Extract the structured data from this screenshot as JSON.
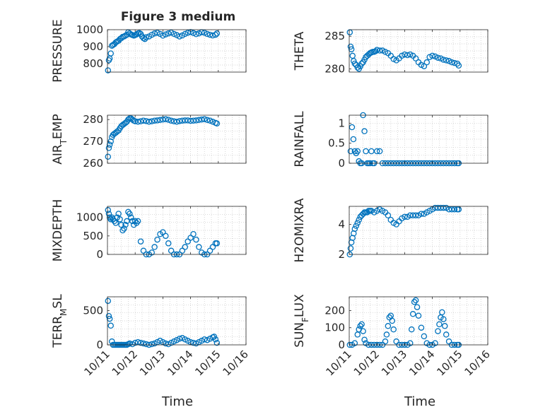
{
  "figure": {
    "title": "Figure 3 medium",
    "xlabel": "Time"
  },
  "chart_data": [
    {
      "type": "scatter",
      "title": "Figure 3 medium",
      "ylabel": "PRESSURE",
      "xlabel": "",
      "xlim": [
        0,
        5
      ],
      "xticks": [
        "10/11",
        "10/12",
        "10/13",
        "10/14",
        "10/15",
        "10/16"
      ],
      "ylim": [
        750,
        1000
      ],
      "yticks": [
        800,
        900,
        1000
      ],
      "grid": true,
      "marker": "open-circle",
      "color": "#0072BD",
      "x": [
        0.02,
        0.05,
        0.08,
        0.12,
        0.16,
        0.2,
        0.25,
        0.3,
        0.35,
        0.4,
        0.45,
        0.5,
        0.55,
        0.6,
        0.65,
        0.7,
        0.75,
        0.8,
        0.85,
        0.9,
        0.95,
        1.0,
        1.05,
        1.1,
        1.15,
        1.2,
        1.25,
        1.3,
        1.35,
        1.4,
        1.5,
        1.6,
        1.7,
        1.8,
        1.9,
        2.0,
        2.1,
        2.2,
        2.3,
        2.4,
        2.5,
        2.6,
        2.7,
        2.8,
        2.9,
        3.0,
        3.1,
        3.2,
        3.3,
        3.4,
        3.5,
        3.6,
        3.7,
        3.8,
        3.9,
        3.95
      ],
      "y": [
        760,
        820,
        830,
        860,
        905,
        910,
        915,
        925,
        930,
        935,
        945,
        950,
        958,
        960,
        965,
        970,
        985,
        978,
        972,
        968,
        965,
        968,
        972,
        978,
        980,
        975,
        960,
        950,
        945,
        955,
        960,
        970,
        978,
        982,
        975,
        965,
        972,
        978,
        983,
        975,
        968,
        960,
        966,
        975,
        982,
        986,
        980,
        974,
        978,
        985,
        982,
        975,
        970,
        966,
        970,
        978
      ]
    },
    {
      "type": "scatter",
      "title": "",
      "ylabel": "THETA",
      "xlabel": "",
      "xlim": [
        0,
        5
      ],
      "xticks": [
        "10/11",
        "10/12",
        "10/13",
        "10/14",
        "10/15",
        "10/16"
      ],
      "ylim": [
        279.5,
        286
      ],
      "yticks": [
        280,
        285
      ],
      "grid": true,
      "marker": "open-circle",
      "color": "#0072BD",
      "x": [
        0.02,
        0.05,
        0.08,
        0.12,
        0.16,
        0.2,
        0.25,
        0.3,
        0.35,
        0.4,
        0.45,
        0.5,
        0.55,
        0.6,
        0.65,
        0.7,
        0.75,
        0.8,
        0.85,
        0.9,
        0.95,
        1.0,
        1.1,
        1.2,
        1.3,
        1.4,
        1.5,
        1.6,
        1.7,
        1.8,
        1.9,
        2.0,
        2.1,
        2.2,
        2.3,
        2.4,
        2.5,
        2.6,
        2.7,
        2.8,
        2.9,
        3.0,
        3.1,
        3.2,
        3.3,
        3.4,
        3.5,
        3.6,
        3.7,
        3.8,
        3.9,
        3.95
      ],
      "y": [
        285.6,
        283.4,
        283.0,
        282.0,
        281.2,
        280.8,
        280.6,
        280.2,
        280.0,
        280.4,
        280.8,
        281.0,
        281.4,
        281.8,
        282.0,
        282.2,
        282.4,
        282.5,
        282.6,
        282.6,
        282.7,
        282.9,
        282.8,
        282.8,
        282.6,
        282.4,
        282.0,
        281.5,
        281.3,
        281.6,
        282.0,
        282.2,
        282.1,
        282.2,
        282.0,
        281.6,
        281.0,
        280.6,
        280.4,
        281.0,
        281.8,
        282.0,
        281.9,
        281.7,
        281.6,
        281.4,
        281.3,
        281.2,
        281.0,
        280.9,
        280.8,
        280.5
      ]
    },
    {
      "type": "scatter",
      "title": "",
      "ylabel": "AIR_TEMP",
      "xlabel": "",
      "xlim": [
        0,
        5
      ],
      "xticks": [
        "10/11",
        "10/12",
        "10/13",
        "10/14",
        "10/15",
        "10/16"
      ],
      "ylim": [
        260,
        282
      ],
      "yticks": [
        260,
        270,
        280
      ],
      "grid": true,
      "marker": "open-circle",
      "color": "#0072BD",
      "x": [
        0.02,
        0.05,
        0.08,
        0.12,
        0.16,
        0.2,
        0.25,
        0.3,
        0.35,
        0.4,
        0.45,
        0.5,
        0.55,
        0.6,
        0.65,
        0.7,
        0.75,
        0.8,
        0.85,
        0.9,
        0.95,
        1.0,
        1.1,
        1.2,
        1.3,
        1.4,
        1.5,
        1.6,
        1.7,
        1.8,
        1.9,
        2.0,
        2.1,
        2.2,
        2.3,
        2.4,
        2.5,
        2.6,
        2.7,
        2.8,
        2.9,
        3.0,
        3.1,
        3.2,
        3.3,
        3.4,
        3.5,
        3.6,
        3.7,
        3.8,
        3.9,
        3.95
      ],
      "y": [
        263,
        267,
        268.5,
        270,
        272,
        273,
        273.5,
        274,
        274.5,
        275,
        276,
        277,
        277.5,
        278,
        278.5,
        279,
        280,
        280.5,
        280.5,
        280,
        279.5,
        279.2,
        279,
        279.2,
        279.5,
        279.3,
        279,
        279.2,
        279.5,
        279.6,
        279.8,
        280,
        280.2,
        279.9,
        279.5,
        279.2,
        279,
        279.3,
        279.5,
        279.6,
        279.6,
        279.4,
        279.5,
        279.6,
        279.8,
        280,
        280.2,
        279.8,
        279.5,
        279,
        278.5,
        278.2
      ]
    },
    {
      "type": "scatter",
      "title": "",
      "ylabel": "RAINFALL",
      "xlabel": "",
      "xlim": [
        0,
        5
      ],
      "xticks": [
        "10/11",
        "10/12",
        "10/13",
        "10/14",
        "10/15",
        "10/16"
      ],
      "ylim": [
        0,
        1.2
      ],
      "yticks": [
        0,
        0.5,
        1
      ],
      "grid": true,
      "marker": "open-circle",
      "color": "#0072BD",
      "x": [
        0.05,
        0.1,
        0.15,
        0.2,
        0.25,
        0.3,
        0.35,
        0.4,
        0.45,
        0.5,
        0.55,
        0.6,
        0.65,
        0.7,
        0.75,
        0.8,
        0.85,
        0.9,
        1.0,
        1.1,
        1.2,
        1.3,
        1.4,
        1.5,
        1.6,
        1.7,
        1.8,
        1.9,
        2.0,
        2.1,
        2.2,
        2.3,
        2.4,
        2.5,
        2.6,
        2.7,
        2.8,
        2.9,
        3.0,
        3.1,
        3.2,
        3.3,
        3.4,
        3.5,
        3.6,
        3.7,
        3.8,
        3.9,
        3.95
      ],
      "y": [
        0.3,
        0.9,
        0.6,
        0.3,
        0.25,
        0.3,
        0.05,
        0.0,
        0.0,
        1.2,
        0.8,
        0.3,
        0.0,
        0.0,
        0.0,
        0.3,
        0.0,
        0.0,
        0.3,
        0.3,
        0,
        0,
        0,
        0,
        0,
        0,
        0,
        0,
        0,
        0,
        0,
        0,
        0,
        0,
        0,
        0,
        0,
        0,
        0,
        0,
        0,
        0,
        0,
        0,
        0,
        0,
        0,
        0,
        0
      ]
    },
    {
      "type": "scatter",
      "title": "",
      "ylabel": "MIXDEPTH",
      "xlabel": "",
      "xlim": [
        0,
        5
      ],
      "xticks": [
        "10/11",
        "10/12",
        "10/13",
        "10/14",
        "10/15",
        "10/16"
      ],
      "ylim": [
        0,
        1300
      ],
      "yticks": [
        0,
        500,
        1000
      ],
      "grid": true,
      "marker": "open-circle",
      "color": "#0072BD",
      "x": [
        0.02,
        0.05,
        0.08,
        0.12,
        0.16,
        0.2,
        0.25,
        0.3,
        0.35,
        0.4,
        0.45,
        0.5,
        0.55,
        0.6,
        0.65,
        0.7,
        0.75,
        0.8,
        0.85,
        0.9,
        0.95,
        1.0,
        1.05,
        1.1,
        1.2,
        1.3,
        1.4,
        1.5,
        1.6,
        1.7,
        1.8,
        1.9,
        2.0,
        2.1,
        2.2,
        2.3,
        2.4,
        2.5,
        2.6,
        2.7,
        2.8,
        2.9,
        3.0,
        3.1,
        3.2,
        3.3,
        3.4,
        3.5,
        3.6,
        3.7,
        3.8,
        3.9,
        3.95
      ],
      "y": [
        1200,
        1100,
        1000,
        950,
        1000,
        950,
        900,
        850,
        1000,
        1100,
        950,
        800,
        650,
        700,
        800,
        900,
        1150,
        1100,
        1000,
        900,
        800,
        900,
        850,
        900,
        350,
        100,
        0,
        0,
        50,
        200,
        400,
        550,
        600,
        500,
        300,
        100,
        0,
        0,
        0,
        100,
        200,
        350,
        450,
        550,
        400,
        200,
        50,
        0,
        0,
        100,
        200,
        300,
        300
      ]
    },
    {
      "type": "scatter",
      "title": "",
      "ylabel": "H2OMIXRA",
      "xlabel": "",
      "xlim": [
        0,
        5
      ],
      "xticks": [
        "10/11",
        "10/12",
        "10/13",
        "10/14",
        "10/15",
        "10/16"
      ],
      "ylim": [
        2,
        5.2
      ],
      "yticks": [
        2,
        4
      ],
      "grid": true,
      "marker": "open-circle",
      "color": "#0072BD",
      "x": [
        0.02,
        0.05,
        0.08,
        0.12,
        0.16,
        0.2,
        0.25,
        0.3,
        0.35,
        0.4,
        0.45,
        0.5,
        0.55,
        0.6,
        0.65,
        0.7,
        0.75,
        0.8,
        0.9,
        1.0,
        1.1,
        1.2,
        1.3,
        1.4,
        1.5,
        1.6,
        1.7,
        1.8,
        1.9,
        2.0,
        2.1,
        2.2,
        2.3,
        2.4,
        2.5,
        2.6,
        2.7,
        2.8,
        2.9,
        3.0,
        3.1,
        3.2,
        3.3,
        3.4,
        3.5,
        3.6,
        3.7,
        3.8,
        3.9,
        3.95
      ],
      "y": [
        2.0,
        2.4,
        2.8,
        3.1,
        3.4,
        3.7,
        3.9,
        4.1,
        4.3,
        4.5,
        4.6,
        4.7,
        4.8,
        4.8,
        4.8,
        4.9,
        4.9,
        4.9,
        4.8,
        4.9,
        5.0,
        4.9,
        4.8,
        4.6,
        4.3,
        4.1,
        4.0,
        4.2,
        4.4,
        4.5,
        4.5,
        4.6,
        4.6,
        4.6,
        4.6,
        4.7,
        4.7,
        4.8,
        4.9,
        5.0,
        5.1,
        5.1,
        5.1,
        5.1,
        5.1,
        5.0,
        5.0,
        5.0,
        5.0,
        5.0
      ]
    },
    {
      "type": "scatter",
      "title": "",
      "ylabel": "TERR_MSL",
      "xlabel": "Time",
      "xlim": [
        0,
        5
      ],
      "xticks": [
        "10/11",
        "10/12",
        "10/13",
        "10/14",
        "10/15",
        "10/16"
      ],
      "ylim": [
        0,
        700
      ],
      "yticks": [
        0,
        500
      ],
      "grid": true,
      "marker": "open-circle",
      "color": "#0072BD",
      "x": [
        0.02,
        0.05,
        0.08,
        0.12,
        0.16,
        0.2,
        0.25,
        0.3,
        0.35,
        0.4,
        0.45,
        0.5,
        0.55,
        0.6,
        0.65,
        0.7,
        0.75,
        0.8,
        0.9,
        1.0,
        1.1,
        1.2,
        1.3,
        1.4,
        1.5,
        1.6,
        1.7,
        1.8,
        1.9,
        2.0,
        2.1,
        2.2,
        2.3,
        2.4,
        2.5,
        2.6,
        2.7,
        2.8,
        2.9,
        3.0,
        3.1,
        3.2,
        3.3,
        3.4,
        3.5,
        3.6,
        3.7,
        3.8,
        3.85,
        3.9,
        3.95
      ],
      "y": [
        640,
        420,
        380,
        280,
        50,
        0,
        0,
        0,
        0,
        0,
        0,
        0,
        0,
        0,
        0,
        0,
        10,
        20,
        10,
        30,
        40,
        30,
        20,
        10,
        0,
        10,
        20,
        40,
        60,
        40,
        20,
        10,
        30,
        50,
        70,
        90,
        100,
        80,
        60,
        40,
        30,
        20,
        40,
        60,
        80,
        70,
        90,
        110,
        120,
        80,
        30
      ]
    },
    {
      "type": "scatter",
      "title": "",
      "ylabel": "SUN_FLUX",
      "xlabel": "Time",
      "xlim": [
        0,
        5
      ],
      "xticks": [
        "10/11",
        "10/12",
        "10/13",
        "10/14",
        "10/15",
        "10/16"
      ],
      "ylim": [
        0,
        280
      ],
      "yticks": [
        0,
        100,
        200
      ],
      "grid": true,
      "marker": "open-circle",
      "color": "#0072BD",
      "x": [
        0.02,
        0.1,
        0.2,
        0.3,
        0.35,
        0.4,
        0.45,
        0.5,
        0.55,
        0.6,
        0.7,
        0.8,
        0.9,
        1.0,
        1.1,
        1.2,
        1.3,
        1.35,
        1.4,
        1.45,
        1.5,
        1.55,
        1.6,
        1.7,
        1.8,
        1.9,
        2.0,
        2.1,
        2.2,
        2.25,
        2.3,
        2.35,
        2.4,
        2.45,
        2.5,
        2.6,
        2.7,
        2.8,
        2.9,
        3.0,
        3.1,
        3.2,
        3.25,
        3.3,
        3.35,
        3.4,
        3.45,
        3.5,
        3.6,
        3.7,
        3.8,
        3.9,
        3.95
      ],
      "y": [
        0,
        0,
        10,
        60,
        90,
        110,
        120,
        80,
        30,
        10,
        0,
        0,
        0,
        0,
        0,
        0,
        20,
        60,
        110,
        160,
        170,
        140,
        90,
        20,
        0,
        0,
        0,
        0,
        10,
        90,
        180,
        250,
        260,
        220,
        170,
        100,
        50,
        10,
        0,
        0,
        10,
        80,
        120,
        160,
        190,
        150,
        110,
        60,
        20,
        0,
        0,
        0,
        0
      ]
    }
  ]
}
